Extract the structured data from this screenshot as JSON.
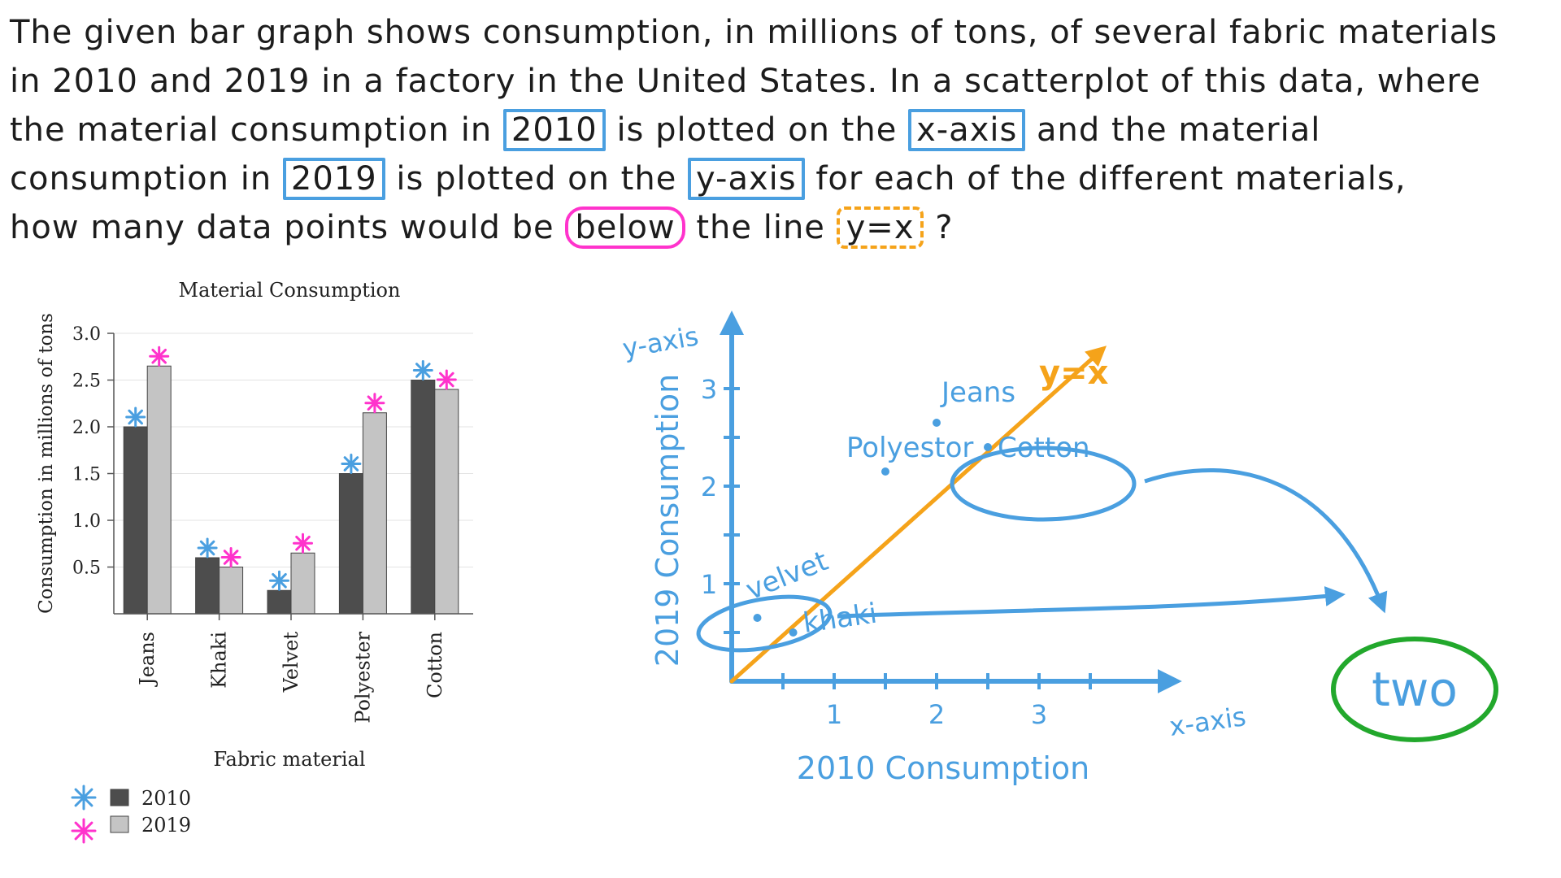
{
  "question": {
    "line1": "The given bar graph shows consumption, in millions of tons, of several fabric materials",
    "line2": "in 2010 and 2019 in a factory in the United States. In a scatterplot of this data, where",
    "line3_a": "the material consumption in",
    "line3_box1": "2010",
    "line3_b": "is plotted on the",
    "line3_box2": "x-axis",
    "line3_c": "and the material",
    "line4_a": "consumption in",
    "line4_box1": "2019",
    "line4_b": "is plotted on the",
    "line4_box2": "y-axis",
    "line4_c": "for each of the different materials,",
    "line5_a": "how many data points would be",
    "line5_box1": "below",
    "line5_b": "the line",
    "line5_box2": "y=x",
    "line5_c": "?"
  },
  "colors": {
    "blue": "#4a9fe0",
    "pink": "#ff33cc",
    "orange": "#f5a31a",
    "green": "#22a82c",
    "dark_bar": "#4d4d4d",
    "light_bar": "#c4c4c4"
  },
  "chart_data": [
    {
      "type": "bar",
      "title": "Material Consumption",
      "xlabel": "Fabric material",
      "ylabel": "Consumption in millions of tons",
      "categories": [
        "Jeans",
        "Khaki",
        "Velvet",
        "Polyester",
        "Cotton"
      ],
      "series": [
        {
          "name": "2010",
          "values": [
            2.0,
            0.6,
            0.25,
            1.5,
            2.5
          ]
        },
        {
          "name": "2019",
          "values": [
            2.65,
            0.5,
            0.65,
            2.15,
            2.4
          ]
        }
      ],
      "yticks": [
        0.5,
        1.0,
        1.5,
        2.0,
        2.5,
        3.0
      ],
      "ytick_labels": [
        "0.5",
        "1.0",
        "1.5",
        "2.0",
        "2.5",
        "3.0"
      ],
      "ylim": [
        0,
        3.0
      ],
      "grid": true,
      "legend": "bottom-left"
    },
    {
      "type": "scatter",
      "xlabel": "2010 Consumption",
      "ylabel": "2019 Consumption",
      "x_axis_label": "x-axis",
      "y_axis_label": "y-axis",
      "xlim": [
        0,
        4.3
      ],
      "ylim": [
        0,
        3.7
      ],
      "xticks": [
        1,
        2,
        3
      ],
      "yticks": [
        1,
        2,
        3
      ],
      "points": [
        {
          "name": "Velvet",
          "label": "velvet",
          "x": 0.25,
          "y": 0.65
        },
        {
          "name": "Khaki",
          "label": "khaki",
          "x": 0.6,
          "y": 0.5
        },
        {
          "name": "Polyester",
          "label": "Polyestor",
          "x": 1.5,
          "y": 2.15
        },
        {
          "name": "Jeans",
          "label": "Jeans",
          "x": 2.0,
          "y": 2.65
        },
        {
          "name": "Cotton",
          "label": "Cotton",
          "x": 2.5,
          "y": 2.4
        }
      ],
      "line_label": "y=x",
      "answer": "two"
    }
  ]
}
